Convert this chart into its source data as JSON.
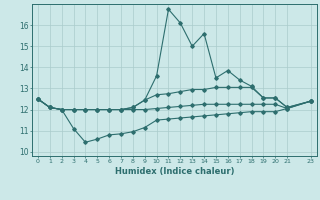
{
  "xlabel": "Humidex (Indice chaleur)",
  "bg_color": "#cce8e8",
  "line_color": "#2d6e6e",
  "grid_color": "#aacccc",
  "xlim": [
    -0.5,
    23.5
  ],
  "ylim": [
    9.8,
    17.0
  ],
  "xticks": [
    0,
    1,
    2,
    3,
    4,
    5,
    6,
    7,
    8,
    9,
    10,
    11,
    12,
    13,
    14,
    15,
    16,
    17,
    18,
    19,
    20,
    21,
    23
  ],
  "yticks": [
    10,
    11,
    12,
    13,
    14,
    15,
    16
  ],
  "x_vals": [
    0,
    1,
    2,
    3,
    4,
    5,
    6,
    7,
    8,
    9,
    10,
    11,
    12,
    13,
    14,
    15,
    16,
    17,
    18,
    19,
    20,
    21,
    23
  ],
  "line1": [
    12.5,
    12.1,
    12.0,
    11.1,
    10.45,
    10.6,
    10.8,
    10.85,
    10.95,
    11.15,
    11.5,
    11.55,
    11.6,
    11.65,
    11.7,
    11.75,
    11.8,
    11.85,
    11.9,
    11.9,
    11.9,
    12.05,
    12.4
  ],
  "line2": [
    12.5,
    12.1,
    12.0,
    12.0,
    12.0,
    12.0,
    12.0,
    12.0,
    12.1,
    12.45,
    13.6,
    16.75,
    16.1,
    15.0,
    15.6,
    13.5,
    13.85,
    13.4,
    13.1,
    12.55,
    12.55,
    12.1,
    12.4
  ],
  "line3": [
    12.5,
    12.1,
    12.0,
    12.0,
    12.0,
    12.0,
    12.0,
    12.0,
    12.1,
    12.45,
    12.7,
    12.75,
    12.85,
    12.95,
    12.95,
    13.05,
    13.05,
    13.05,
    13.05,
    12.55,
    12.55,
    12.1,
    12.4
  ],
  "line4": [
    12.5,
    12.1,
    12.0,
    12.0,
    12.0,
    12.0,
    12.0,
    12.0,
    12.0,
    12.0,
    12.05,
    12.1,
    12.15,
    12.2,
    12.25,
    12.25,
    12.25,
    12.25,
    12.25,
    12.25,
    12.25,
    12.05,
    12.4
  ]
}
